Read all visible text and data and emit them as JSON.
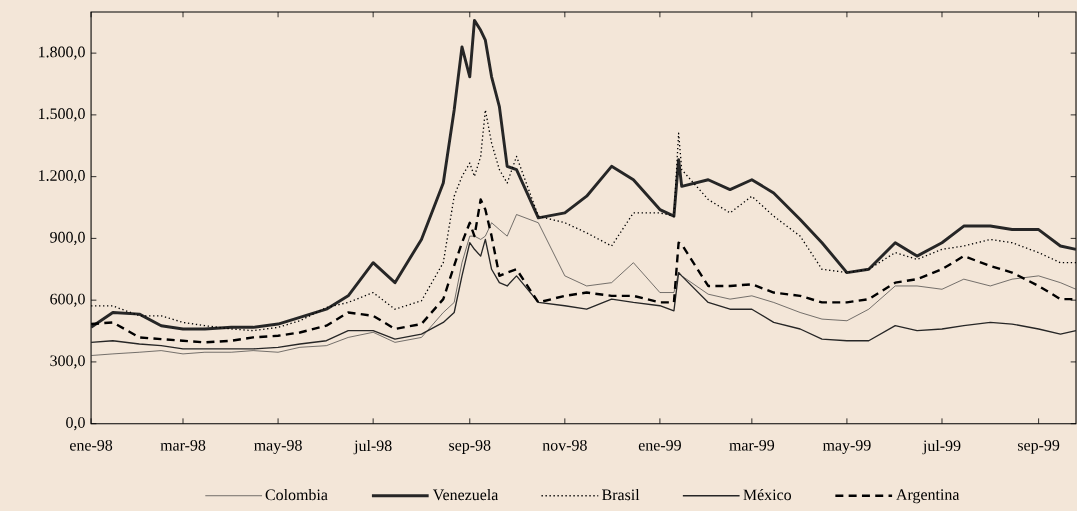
{
  "chart_data": {
    "type": "line",
    "x": [
      "1998-01-01",
      "1998-01-15",
      "1998-02-01",
      "1998-02-15",
      "1998-03-01",
      "1998-03-15",
      "1998-04-01",
      "1998-04-15",
      "1998-05-01",
      "1998-05-15",
      "1998-06-01",
      "1998-06-15",
      "1998-07-01",
      "1998-07-15",
      "1998-08-01",
      "1998-08-15",
      "1998-08-22",
      "1998-08-27",
      "1998-09-01",
      "1998-09-04",
      "1998-09-08",
      "1998-09-11",
      "1998-09-15",
      "1998-09-20",
      "1998-09-25",
      "1998-10-01",
      "1998-10-15",
      "1998-11-01",
      "1998-11-15",
      "1998-12-01",
      "1998-12-15",
      "1999-01-01",
      "1999-01-10",
      "1999-01-13",
      "1999-01-15",
      "1999-02-01",
      "1999-02-15",
      "1999-03-01",
      "1999-03-15",
      "1999-04-01",
      "1999-04-15",
      "1999-05-01",
      "1999-05-15",
      "1999-06-01",
      "1999-06-15",
      "1999-07-01",
      "1999-07-15",
      "1999-08-01",
      "1999-08-15",
      "1999-09-01",
      "1999-09-15",
      "1999-09-25"
    ],
    "series": [
      {
        "name": "Colombia",
        "color": "#333333",
        "line_style": "solid",
        "values": [
          331,
          339,
          347,
          355,
          339,
          347,
          347,
          355,
          347,
          371,
          379,
          419,
          444,
          395,
          419,
          540,
          589,
          782,
          911,
          911,
          895,
          911,
          976,
          943,
          911,
          1016,
          976,
          718,
          669,
          685,
          782,
          637,
          637,
          734,
          718,
          629,
          605,
          621,
          589,
          540,
          508,
          500,
          556,
          669,
          669,
          653,
          702,
          669,
          702,
          718,
          685,
          653
        ]
      },
      {
        "name": "Venezuela",
        "color": "#262626",
        "line_style": "solid",
        "values": [
          468,
          540,
          532,
          476,
          460,
          460,
          468,
          468,
          484,
          516,
          556,
          621,
          782,
          685,
          895,
          1169,
          1524,
          1830,
          1685,
          1959,
          1911,
          1863,
          1685,
          1540,
          1250,
          1234,
          1000,
          1024,
          1105,
          1250,
          1185,
          1040,
          1008,
          1282,
          1153,
          1185,
          1137,
          1185,
          1121,
          992,
          879,
          734,
          750,
          879,
          814,
          879,
          960,
          960,
          943,
          943,
          863,
          847
        ]
      },
      {
        "name": "Brasil",
        "color": "#000000",
        "line_style": "dotted",
        "values": [
          572,
          572,
          524,
          524,
          492,
          476,
          460,
          452,
          468,
          500,
          564,
          589,
          637,
          556,
          597,
          782,
          1105,
          1201,
          1266,
          1201,
          1298,
          1524,
          1363,
          1234,
          1169,
          1298,
          1008,
          976,
          927,
          863,
          1024,
          1024,
          1008,
          1411,
          1234,
          1089,
          1024,
          1105,
          1008,
          911,
          750,
          734,
          750,
          831,
          798,
          847,
          863,
          895,
          879,
          831,
          782,
          782
        ]
      },
      {
        "name": "México",
        "color": "#262626",
        "line_style": "solid",
        "values": [
          395,
          403,
          387,
          379,
          363,
          363,
          363,
          363,
          371,
          387,
          403,
          452,
          452,
          411,
          435,
          492,
          540,
          718,
          879,
          847,
          814,
          895,
          750,
          685,
          669,
          718,
          589,
          573,
          556,
          605,
          589,
          573,
          548,
          734,
          718,
          589,
          556,
          556,
          492,
          460,
          411,
          403,
          403,
          476,
          452,
          460,
          476,
          492,
          484,
          460,
          435,
          452
        ]
      },
      {
        "name": "Argentina",
        "color": "#000000",
        "line_style": "dashed",
        "values": [
          484,
          492,
          419,
          411,
          403,
          395,
          403,
          419,
          427,
          443,
          476,
          540,
          524,
          460,
          484,
          605,
          768,
          879,
          976,
          911,
          1089,
          1040,
          911,
          718,
          734,
          750,
          589,
          621,
          637,
          621,
          621,
          589,
          589,
          879,
          871,
          669,
          669,
          677,
          637,
          621,
          589,
          589,
          605,
          685,
          702,
          750,
          814,
          766,
          734,
          669,
          605,
          605
        ]
      }
    ],
    "xlim": [
      "1998-01-01",
      "1999-09-25"
    ],
    "xticks": [
      {
        "value": "1998-01-01",
        "label": "ene-98"
      },
      {
        "value": "1998-03-01",
        "label": "mar-98"
      },
      {
        "value": "1998-05-01",
        "label": "may-98"
      },
      {
        "value": "1998-07-01",
        "label": "jul-98"
      },
      {
        "value": "1998-09-01",
        "label": "sep-98"
      },
      {
        "value": "1998-11-01",
        "label": "nov-98"
      },
      {
        "value": "1999-01-01",
        "label": "ene-99"
      },
      {
        "value": "1999-03-01",
        "label": "mar-99"
      },
      {
        "value": "1999-05-01",
        "label": "may-99"
      },
      {
        "value": "1999-07-01",
        "label": "jul-99"
      },
      {
        "value": "1999-09-01",
        "label": "sep-99"
      }
    ],
    "ylim": [
      0,
      2000
    ],
    "yticks": [
      {
        "value": 0,
        "label": "0,0"
      },
      {
        "value": 300,
        "label": "300,0"
      },
      {
        "value": 600,
        "label": "600,0"
      },
      {
        "value": 900,
        "label": "900,0"
      },
      {
        "value": 1200,
        "label": "1.200,0"
      },
      {
        "value": 1500,
        "label": "1.500,0"
      },
      {
        "value": 1800,
        "label": "1.800,0"
      }
    ],
    "legend": "bottom",
    "marker": "none"
  }
}
